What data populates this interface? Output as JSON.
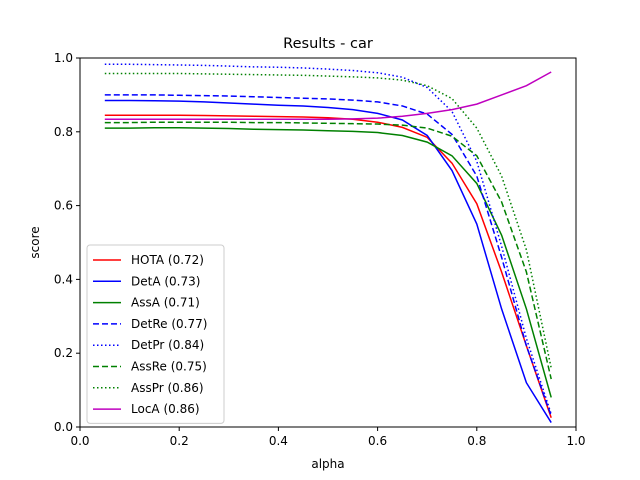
{
  "chart_data": {
    "type": "line",
    "title": "Results - car",
    "xlabel": "alpha",
    "ylabel": "score",
    "xlim": [
      0.0,
      1.0
    ],
    "ylim": [
      0.0,
      1.0
    ],
    "xticks": [
      "0.0",
      "0.2",
      "0.4",
      "0.6",
      "0.8",
      "1.0"
    ],
    "yticks": [
      "0.0",
      "0.2",
      "0.4",
      "0.6",
      "0.8",
      "1.0"
    ],
    "grid": false,
    "legend_position": "lower-left",
    "x": [
      0.05,
      0.1,
      0.15,
      0.2,
      0.25,
      0.3,
      0.35,
      0.4,
      0.45,
      0.5,
      0.55,
      0.6,
      0.65,
      0.7,
      0.75,
      0.8,
      0.85,
      0.9,
      0.95
    ],
    "series": [
      {
        "name": "HOTA (0.72)",
        "color": "#ff0000",
        "style": "solid",
        "values": [
          0.845,
          0.845,
          0.845,
          0.845,
          0.844,
          0.843,
          0.842,
          0.841,
          0.84,
          0.838,
          0.834,
          0.826,
          0.812,
          0.785,
          0.715,
          0.605,
          0.42,
          0.22,
          0.025
        ]
      },
      {
        "name": "DetA (0.73)",
        "color": "#0000ff",
        "style": "solid",
        "values": [
          0.885,
          0.885,
          0.884,
          0.883,
          0.881,
          0.878,
          0.875,
          0.872,
          0.87,
          0.866,
          0.86,
          0.85,
          0.832,
          0.79,
          0.695,
          0.55,
          0.32,
          0.12,
          0.012
        ]
      },
      {
        "name": "AssA (0.71)",
        "color": "#008000",
        "style": "solid",
        "values": [
          0.81,
          0.81,
          0.811,
          0.811,
          0.81,
          0.809,
          0.807,
          0.806,
          0.805,
          0.803,
          0.801,
          0.798,
          0.79,
          0.772,
          0.735,
          0.66,
          0.52,
          0.32,
          0.08
        ]
      },
      {
        "name": "DetRe (0.77)",
        "color": "#0000ff",
        "style": "dashed",
        "values": [
          0.9,
          0.9,
          0.9,
          0.899,
          0.898,
          0.897,
          0.895,
          0.893,
          0.891,
          0.889,
          0.886,
          0.881,
          0.87,
          0.848,
          0.793,
          0.68,
          0.46,
          0.22,
          0.03
        ]
      },
      {
        "name": "DetPr (0.84)",
        "color": "#0000ff",
        "style": "dotted",
        "values": [
          0.983,
          0.983,
          0.982,
          0.981,
          0.98,
          0.978,
          0.976,
          0.975,
          0.973,
          0.97,
          0.966,
          0.96,
          0.948,
          0.92,
          0.855,
          0.72,
          0.49,
          0.24,
          0.035
        ]
      },
      {
        "name": "AssRe (0.75)",
        "color": "#008000",
        "style": "dashed",
        "values": [
          0.825,
          0.825,
          0.826,
          0.826,
          0.826,
          0.826,
          0.825,
          0.825,
          0.824,
          0.823,
          0.822,
          0.821,
          0.818,
          0.81,
          0.788,
          0.735,
          0.61,
          0.42,
          0.13
        ]
      },
      {
        "name": "AssPr (0.86)",
        "color": "#008000",
        "style": "dotted",
        "values": [
          0.958,
          0.958,
          0.958,
          0.958,
          0.957,
          0.956,
          0.955,
          0.954,
          0.953,
          0.951,
          0.949,
          0.946,
          0.94,
          0.925,
          0.89,
          0.81,
          0.68,
          0.48,
          0.16
        ]
      },
      {
        "name": "LocA (0.86)",
        "color": "#bf00bf",
        "style": "solid",
        "values": [
          0.834,
          0.834,
          0.834,
          0.834,
          0.834,
          0.834,
          0.834,
          0.834,
          0.834,
          0.834,
          0.835,
          0.837,
          0.842,
          0.85,
          0.86,
          0.875,
          0.9,
          0.925,
          0.962
        ]
      }
    ]
  }
}
